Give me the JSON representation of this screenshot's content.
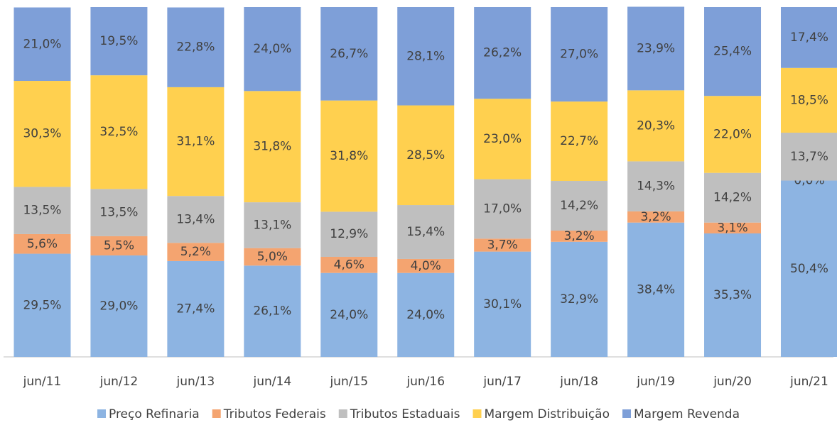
{
  "chart_data": {
    "type": "stacked_bar",
    "categories": [
      "jun/11",
      "jun/12",
      "jun/13",
      "jun/14",
      "jun/15",
      "jun/16",
      "jun/17",
      "jun/18",
      "jun/19",
      "jun/20",
      "jun/21"
    ],
    "ylim": [
      0,
      100
    ],
    "series": [
      {
        "name": "Preço Refinaria",
        "color": "#8db4e2",
        "values": [
          29.5,
          29.0,
          27.4,
          26.1,
          24.0,
          24.0,
          30.1,
          32.9,
          38.4,
          35.3,
          50.4
        ],
        "value_labels": [
          "29,5%",
          "29,0%",
          "27,4%",
          "26,1%",
          "24,0%",
          "24,0%",
          "30,1%",
          "32,9%",
          "38,4%",
          "35,3%",
          "50,4%"
        ]
      },
      {
        "name": "Tributos Federais",
        "color": "#f4a470",
        "values": [
          5.6,
          5.5,
          5.2,
          5.0,
          4.6,
          4.0,
          3.7,
          3.2,
          3.2,
          3.1,
          0.0
        ],
        "value_labels": [
          "5,6%",
          "5,5%",
          "5,2%",
          "5,0%",
          "4,6%",
          "4,0%",
          "3,7%",
          "3,2%",
          "3,2%",
          "3,1%",
          "0,0%"
        ]
      },
      {
        "name": "Tributos Estaduais",
        "color": "#bfbfbf",
        "values": [
          13.5,
          13.5,
          13.4,
          13.1,
          12.9,
          15.4,
          17.0,
          14.2,
          14.3,
          14.2,
          13.7
        ],
        "value_labels": [
          "13,5%",
          "13,5%",
          "13,4%",
          "13,1%",
          "12,9%",
          "15,4%",
          "17,0%",
          "14,2%",
          "14,3%",
          "14,2%",
          "13,7%"
        ]
      },
      {
        "name": "Margem Distribuição",
        "color": "#ffd04f",
        "values": [
          30.3,
          32.5,
          31.1,
          31.8,
          31.8,
          28.5,
          23.0,
          22.7,
          20.3,
          22.0,
          18.5
        ],
        "value_labels": [
          "30,3%",
          "32,5%",
          "31,1%",
          "31,8%",
          "31,8%",
          "28,5%",
          "23,0%",
          "22,7%",
          "20,3%",
          "22,0%",
          "18,5%"
        ]
      },
      {
        "name": "Margem Revenda",
        "color": "#7e9fd8",
        "values": [
          21.0,
          19.5,
          22.8,
          24.0,
          26.7,
          28.1,
          26.2,
          27.0,
          23.9,
          25.4,
          17.4
        ],
        "value_labels": [
          "21,0%",
          "19,5%",
          "22,8%",
          "24,0%",
          "26,7%",
          "28,1%",
          "26,2%",
          "27,0%",
          "23,9%",
          "25,4%",
          "17,4%"
        ]
      }
    ],
    "legend": "bottom"
  }
}
